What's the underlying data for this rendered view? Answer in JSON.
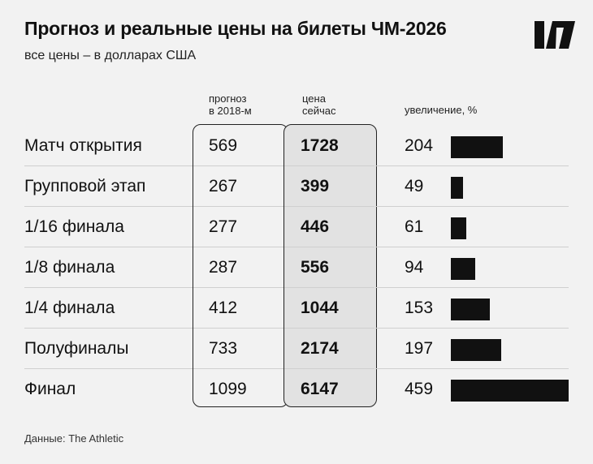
{
  "header": {
    "title": "Прогноз и реальные цены на билеты ЧМ-2026",
    "subtitle": "все цены – в долларах США",
    "logo_icon": "publisher-logo-icon"
  },
  "columns": {
    "forecast_line1": "прогноз",
    "forecast_line2": "в 2018-м",
    "now_line1": "цена",
    "now_line2": "сейчас",
    "increase": "увеличение, %"
  },
  "footer": {
    "source": "Данные: The Athletic"
  },
  "colors": {
    "background": "#f2f2f2",
    "bar": "#111111",
    "highlight_column": "#e2e2e2"
  },
  "chart_data": {
    "type": "table",
    "categories": [
      "Матч открытия",
      "Групповой этап",
      "1/16 финала",
      "1/8 финала",
      "1/4 финала",
      "Полуфиналы",
      "Финал"
    ],
    "series": [
      {
        "name": "прогноз в 2018-м",
        "values": [
          569,
          267,
          277,
          287,
          412,
          733,
          1099
        ]
      },
      {
        "name": "цена сейчас",
        "values": [
          1728,
          399,
          446,
          556,
          1044,
          2174,
          6147
        ]
      },
      {
        "name": "увеличение, %",
        "values": [
          204,
          49,
          61,
          94,
          153,
          197,
          459
        ]
      }
    ],
    "bar_series": "увеличение, %",
    "bar_max": 459
  }
}
